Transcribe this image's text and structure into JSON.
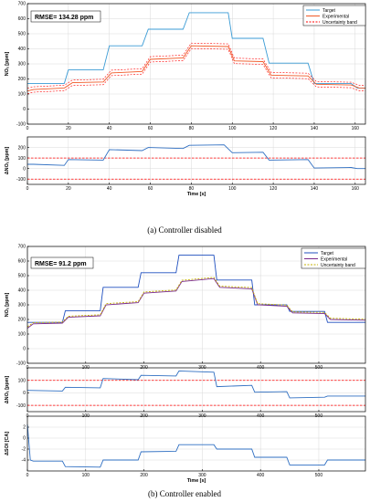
{
  "colors": {
    "target": "#3a9bd5",
    "experimental": "#f05a28",
    "uncertainty": "#ff0000",
    "target_b": "#1f4fbf",
    "experimental_b": "#7a2a8c",
    "uncertainty_b": "#c4b000",
    "delta": "#2f6fc2",
    "limit": "#ff0000"
  },
  "figure_a": {
    "caption": "(a) Controller disabled",
    "rmse": "RMSE= 134.28 ppm",
    "legend": [
      "Target",
      "Experimental",
      "Uncertainty band"
    ],
    "xlabel": "Time [s]"
  },
  "figure_b": {
    "caption": "(b) Controller enabled",
    "rmse": "RMSE= 91.2 ppm",
    "legend": [
      "Target",
      "Experimental",
      "Uncertainty band"
    ],
    "xlabel": "Time [s]"
  },
  "chart_data": [
    {
      "id": "a_top",
      "type": "line",
      "ylabel": "NOₓ [ppm]",
      "xlim": [
        0,
        165
      ],
      "ylim": [
        -100,
        700
      ],
      "xticks": [
        0,
        20,
        40,
        60,
        80,
        100,
        120,
        140,
        160
      ],
      "yticks": [
        -100,
        0,
        100,
        200,
        300,
        400,
        500,
        600,
        700
      ],
      "series": [
        {
          "name": "Target",
          "x": [
            0,
            3,
            18,
            20,
            37,
            40,
            56,
            59,
            76,
            79,
            98,
            100,
            115,
            118,
            137,
            140,
            158,
            161,
            165
          ],
          "y": [
            170,
            170,
            170,
            260,
            260,
            420,
            420,
            530,
            530,
            640,
            640,
            470,
            470,
            305,
            305,
            170,
            170,
            140,
            140
          ]
        },
        {
          "name": "Experimental",
          "x": [
            0,
            3,
            18,
            22,
            37,
            41,
            56,
            60,
            76,
            80,
            98,
            101,
            115,
            119,
            137,
            141,
            158,
            162,
            165
          ],
          "y": [
            120,
            130,
            140,
            175,
            180,
            240,
            250,
            330,
            340,
            420,
            415,
            320,
            315,
            225,
            220,
            165,
            160,
            140,
            138
          ]
        }
      ]
    },
    {
      "id": "a_bottom",
      "type": "line",
      "ylabel": "ΔNOₓ [ppm]",
      "xlabel": "Time [s]",
      "xlim": [
        0,
        165
      ],
      "ylim": [
        -150,
        300
      ],
      "xticks": [
        0,
        20,
        40,
        60,
        80,
        100,
        120,
        140,
        160
      ],
      "yticks": [
        -100,
        0,
        100,
        200
      ],
      "limits": [
        100,
        -100
      ],
      "series": [
        {
          "name": "ΔNOₓ",
          "x": [
            0,
            3,
            18,
            20,
            37,
            40,
            56,
            59,
            76,
            79,
            96,
            100,
            115,
            118,
            137,
            140,
            158,
            161,
            165
          ],
          "y": [
            40,
            40,
            30,
            85,
            80,
            180,
            170,
            200,
            190,
            220,
            225,
            150,
            155,
            80,
            85,
            5,
            10,
            0,
            0
          ]
        }
      ]
    },
    {
      "id": "b_top",
      "type": "line",
      "ylabel": "NOₓ [ppm]",
      "xlim": [
        0,
        580
      ],
      "ylim": [
        -100,
        700
      ],
      "xticks": [
        0,
        100,
        200,
        300,
        400,
        500
      ],
      "yticks": [
        -100,
        0,
        100,
        200,
        300,
        400,
        500,
        600,
        700
      ],
      "series": [
        {
          "name": "Target",
          "x": [
            0,
            5,
            60,
            65,
            125,
            130,
            190,
            195,
            255,
            260,
            320,
            325,
            385,
            390,
            445,
            450,
            510,
            515,
            580
          ],
          "y": [
            180,
            180,
            180,
            260,
            260,
            420,
            420,
            520,
            520,
            640,
            640,
            470,
            470,
            300,
            300,
            255,
            255,
            180,
            180
          ]
        },
        {
          "name": "Experimental",
          "x": [
            0,
            10,
            60,
            70,
            125,
            135,
            190,
            200,
            255,
            265,
            320,
            330,
            385,
            395,
            445,
            455,
            510,
            520,
            580
          ],
          "y": [
            140,
            170,
            175,
            215,
            225,
            300,
            315,
            380,
            395,
            460,
            480,
            420,
            410,
            300,
            290,
            245,
            240,
            200,
            195
          ]
        },
        {
          "name": "Uncertainty band",
          "x": [
            0,
            10,
            60,
            70,
            125,
            135,
            190,
            200,
            255,
            265,
            320,
            330,
            385,
            395,
            445,
            455,
            510,
            520,
            580
          ],
          "y": [
            150,
            178,
            182,
            222,
            232,
            308,
            322,
            388,
            402,
            468,
            488,
            428,
            418,
            308,
            298,
            252,
            248,
            208,
            202
          ]
        }
      ]
    },
    {
      "id": "b_mid",
      "type": "line",
      "ylabel": "ΔNOₓ [ppm]",
      "xlim": [
        0,
        580
      ],
      "ylim": [
        -150,
        200
      ],
      "xticks": [
        0,
        100,
        200,
        300,
        400,
        500
      ],
      "yticks": [
        -100,
        0,
        100
      ],
      "limits": [
        100,
        -100
      ],
      "series": [
        {
          "name": "ΔNOₓ",
          "x": [
            0,
            60,
            65,
            125,
            130,
            190,
            195,
            255,
            260,
            320,
            325,
            385,
            390,
            445,
            450,
            510,
            515,
            580
          ],
          "y": [
            20,
            15,
            45,
            40,
            115,
            105,
            140,
            135,
            175,
            165,
            50,
            60,
            5,
            10,
            -40,
            -35,
            -25,
            -25
          ]
        }
      ]
    },
    {
      "id": "b_bottom",
      "type": "line",
      "ylabel": "ΔSOI [CA]",
      "xlabel": "Time [s]",
      "xlim": [
        0,
        580
      ],
      "ylim": [
        -6,
        4
      ],
      "xticks": [
        0,
        100,
        200,
        300,
        400,
        500
      ],
      "yticks": [
        -4,
        -2,
        0,
        2
      ],
      "series": [
        {
          "name": "ΔSOI",
          "x": [
            0,
            5,
            10,
            60,
            65,
            125,
            130,
            190,
            195,
            255,
            260,
            320,
            325,
            385,
            390,
            445,
            450,
            510,
            515,
            580
          ],
          "y": [
            2.5,
            -4.0,
            -4.2,
            -4.2,
            -5.2,
            -5.3,
            -4.0,
            -4.0,
            -2.5,
            -2.4,
            -1.2,
            -1.2,
            -2.0,
            -2.0,
            -3.5,
            -3.5,
            -4.9,
            -4.9,
            -4.0,
            -4.0
          ]
        }
      ]
    }
  ]
}
